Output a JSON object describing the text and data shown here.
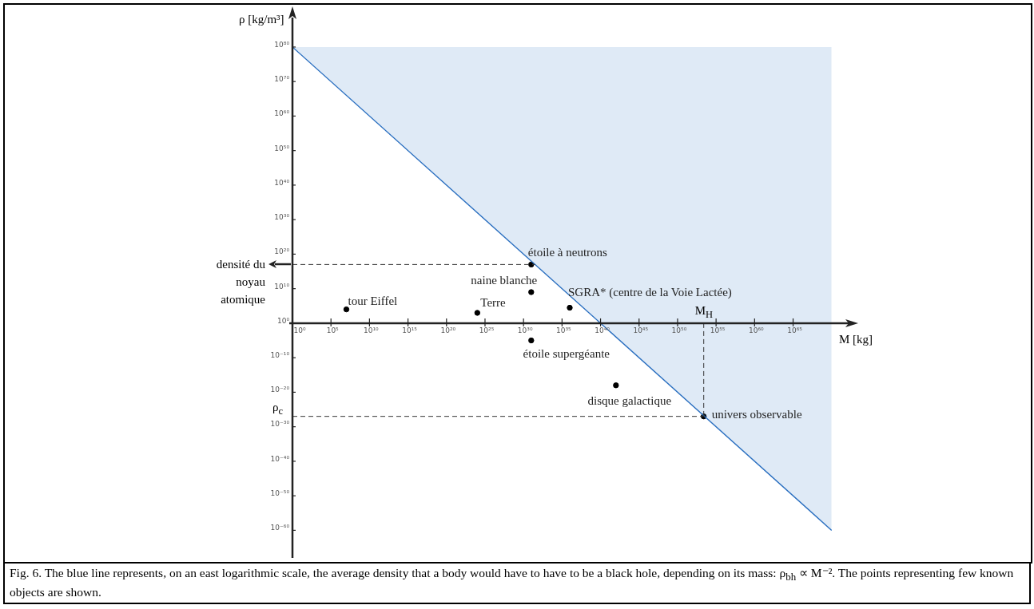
{
  "chart_data": {
    "type": "scatter",
    "xlabel": "M [kg]",
    "ylabel": "ρ [kg/m³]",
    "log": "xy",
    "grid": false,
    "legend": false,
    "marker": "circle",
    "xlim": [
      1,
      1e+72
    ],
    "ylim": [
      1e-68,
      1e+89
    ],
    "xticks": [
      {
        "value": 1,
        "label": "10⁰"
      },
      {
        "value": 100000.0,
        "label": "10⁵"
      },
      {
        "value": 10000000000.0,
        "label": "10¹⁰"
      },
      {
        "value": 1000000000000000.0,
        "label": "10¹⁵"
      },
      {
        "value": 1e+20,
        "label": "10²⁰"
      },
      {
        "value": 1e+25,
        "label": "10²⁵"
      },
      {
        "value": 1e+30,
        "label": "10³⁰"
      },
      {
        "value": 1e+35,
        "label": "10³⁵"
      },
      {
        "value": 1e+40,
        "label": "10⁴⁰"
      },
      {
        "value": 1e+45,
        "label": "10⁴⁵"
      },
      {
        "value": 1e+50,
        "label": "10⁵⁰"
      },
      {
        "value": 1e+55,
        "label": "10⁵⁵"
      },
      {
        "value": 1e+60,
        "label": "10⁶⁰"
      },
      {
        "value": 1e+65,
        "label": "10⁶⁵"
      }
    ],
    "yticks": [
      {
        "value": 1e+80,
        "label": "10⁸⁰"
      },
      {
        "value": 1e+70,
        "label": "10⁷⁰"
      },
      {
        "value": 1e+60,
        "label": "10⁶⁰"
      },
      {
        "value": 1e+50,
        "label": "10⁵⁰"
      },
      {
        "value": 1e+40,
        "label": "10⁴⁰"
      },
      {
        "value": 1e+30,
        "label": "10³⁰"
      },
      {
        "value": 1e+20,
        "label": "10²⁰"
      },
      {
        "value": 10000000000.0,
        "label": "10¹⁰"
      },
      {
        "value": 1,
        "label": "10⁰"
      },
      {
        "value": 1e-10,
        "label": "10⁻¹⁰"
      },
      {
        "value": 1e-20,
        "label": "10⁻²⁰"
      },
      {
        "value": 1e-30,
        "label": "10⁻³⁰"
      },
      {
        "value": 1e-40,
        "label": "10⁻⁴⁰"
      },
      {
        "value": 1e-50,
        "label": "10⁻⁵⁰"
      },
      {
        "value": 1e-60,
        "label": "10⁻⁶⁰"
      }
    ],
    "series": [
      {
        "type": "line",
        "color": "#2a6fc0",
        "x": [
          1,
          1e+70
        ],
        "values": [
          1e+80,
          1e-60
        ],
        "upper": [
          1e+80,
          1e+80
        ],
        "lower": [
          1e+80,
          1e-60
        ],
        "marker": "none",
        "line_style": "solid"
      },
      {
        "color": "#000000",
        "x": [
          10000000.0,
          1e+24,
          1e+31,
          1e+31,
          1e+31,
          1e+36,
          1e+42,
          2.5e+53
        ],
        "values": [
          10000.0,
          1000.0,
          1e+17,
          1000000000.0,
          1e-05,
          30000.0,
          1e-18,
          1e-27
        ]
      }
    ],
    "ref_lines": [
      {
        "axis": "y",
        "value": 1e+17,
        "label": "densité du noyau atomique",
        "line_style": "dashed"
      },
      {
        "axis": "y",
        "value": 1e-27,
        "label": "ρ$_{c}$",
        "line_style": "dashed"
      },
      {
        "axis": "x",
        "value": 2.5e+53,
        "label": "M$_{H}$",
        "line_style": "dashed"
      }
    ],
    "annotations": [
      {
        "text": "tour Eiffel",
        "x": 10000000.0,
        "y": 10000.0
      },
      {
        "text": "Terre",
        "x": 1e+24,
        "y": 1000.0
      },
      {
        "text": "étoile à neutrons",
        "x": 1e+31,
        "y": 1e+17
      },
      {
        "text": "naine blanche",
        "x": 1e+31,
        "y": 1000000000.0
      },
      {
        "text": "étoile supergéante",
        "x": 1e+31,
        "y": 1e-05
      },
      {
        "text": "SGRA* (centre de la Voie Lactée)",
        "x": 1e+36,
        "y": 30000.0
      },
      {
        "text": "disque galactique",
        "x": 1e+42,
        "y": 1e-18
      },
      {
        "text": "univers observable",
        "x": 2.5e+53,
        "y": 1e-27
      },
      "Fig. 6. The blue line represents, on an east logarithmic scale, the average density that a body would have to have to be a black hole, depending on its mass: ρ$_{bh}$ ∝ M⁻². The points representing few known objects are shown."
    ]
  }
}
